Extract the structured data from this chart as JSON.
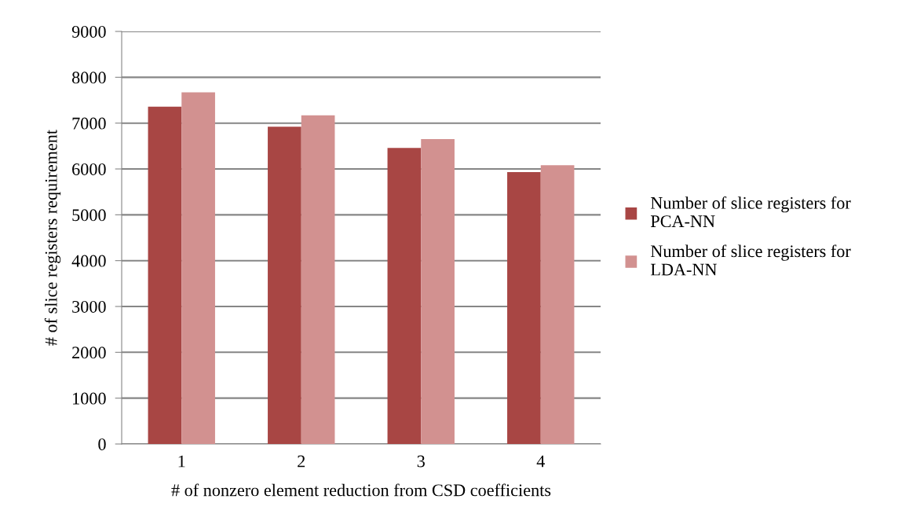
{
  "chart_data": {
    "type": "bar",
    "xlabel": "# of nonzero element reduction from CSD coefficients",
    "ylabel": "# of slice registers requirement",
    "categories": [
      "1",
      "2",
      "3",
      "4"
    ],
    "series": [
      {
        "name": "Number of slice registers for PCA-NN",
        "color": "#a84644",
        "values": [
          7360,
          6920,
          6460,
          5930
        ]
      },
      {
        "name": "Number of slice registers for LDA-NN",
        "color": "#d29190",
        "values": [
          7670,
          7170,
          6650,
          6080
        ]
      }
    ],
    "ylim": [
      0,
      9000
    ],
    "yticks": [
      0,
      1000,
      2000,
      3000,
      4000,
      5000,
      6000,
      7000,
      8000,
      9000
    ],
    "grid": "y",
    "legend": "right"
  }
}
